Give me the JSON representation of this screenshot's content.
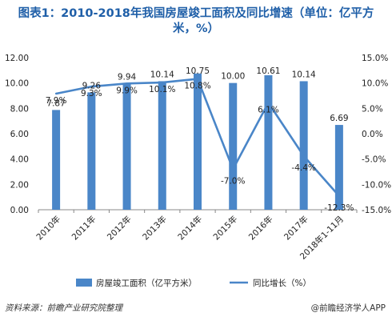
{
  "title": "图表1：2010-2018年我国房屋竣工面积及同比增速（单位：亿平方米，%）",
  "source": "资料来源：前瞻产业研究院整理",
  "brand": "@前瞻经济学人APP",
  "colors": {
    "bar": "#4a86c8",
    "line": "#4a86c8",
    "title": "#1f5fa8"
  },
  "chart_data": {
    "type": "bar",
    "categories": [
      "2010年",
      "2011年",
      "2012年",
      "2013年",
      "2014年",
      "2015年",
      "2016年",
      "2017年",
      "2018年1-11月"
    ],
    "series": [
      {
        "name": "房屋竣工面积（亿平方米）",
        "type": "bar",
        "axis": "left",
        "values": [
          7.87,
          9.26,
          9.94,
          10.14,
          10.75,
          10.0,
          10.61,
          10.14,
          6.69
        ],
        "labels": [
          "7.87",
          "9.26",
          "9.94",
          "10.14",
          "10.75",
          "10.00",
          "10.61",
          "10.14",
          "6.69"
        ]
      },
      {
        "name": "同比增长（%）",
        "type": "line",
        "axis": "right",
        "values": [
          7.9,
          9.3,
          9.9,
          10.1,
          10.8,
          -7.0,
          6.1,
          -4.4,
          -12.3
        ],
        "labels": [
          "7.9%",
          "9.3%",
          "9.9%",
          "10.1%",
          "10.8%",
          "-7.0%",
          "6.1%",
          "-4.4%",
          "-12.3%"
        ]
      }
    ],
    "y_left": {
      "lim": [
        0,
        12
      ],
      "ticks": [
        "0.00",
        "2.00",
        "4.00",
        "6.00",
        "8.00",
        "10.00",
        "12.00"
      ]
    },
    "y_right": {
      "lim": [
        -15,
        15
      ],
      "ticks": [
        "-15.0%",
        "-10.0%",
        "-5.0%",
        "0.0%",
        "5.0%",
        "10.0%",
        "15.0%"
      ]
    },
    "grid": false,
    "legend": "bottom"
  }
}
